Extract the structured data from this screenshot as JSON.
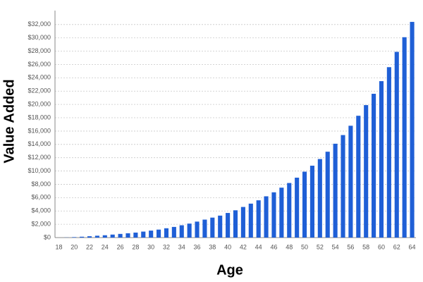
{
  "chart_data": {
    "type": "bar",
    "x_label": "Age",
    "y_label": "Value Added",
    "categories": [
      "18",
      null,
      "20",
      null,
      "22",
      null,
      "24",
      null,
      "26",
      null,
      "28",
      null,
      "30",
      null,
      "32",
      null,
      "34",
      null,
      "36",
      null,
      "38",
      null,
      "40",
      null,
      "42",
      null,
      "44",
      null,
      "46",
      null,
      "48",
      null,
      "50",
      null,
      "52",
      null,
      "54",
      null,
      "56",
      null,
      "58",
      null,
      "60",
      null,
      "62",
      null,
      "64"
    ],
    "values": [
      0,
      20,
      70,
      130,
      200,
      280,
      350,
      450,
      550,
      650,
      750,
      900,
      1050,
      1200,
      1400,
      1600,
      1850,
      2100,
      2400,
      2700,
      3000,
      3300,
      3700,
      4100,
      4600,
      5100,
      5600,
      6200,
      6800,
      7500,
      8200,
      9000,
      9900,
      10800,
      11800,
      12900,
      14100,
      15400,
      16800,
      18300,
      19900,
      21600,
      23500,
      25600,
      27900,
      30100,
      32400
    ],
    "color": "#1f5fd6",
    "ylim": [
      0,
      34100
    ],
    "yticks": [
      {
        "value": 0,
        "label": "$0"
      },
      {
        "value": 2000,
        "label": "$2,000"
      },
      {
        "value": 4000,
        "label": "$4,000"
      },
      {
        "value": 6000,
        "label": "$6,000"
      },
      {
        "value": 8000,
        "label": "$8,000"
      },
      {
        "value": 10000,
        "label": "$10,000"
      },
      {
        "value": 12000,
        "label": "$12,000"
      },
      {
        "value": 14000,
        "label": "$14,000"
      },
      {
        "value": 16000,
        "label": "$16,000"
      },
      {
        "value": 18000,
        "label": "$18,000"
      },
      {
        "value": 20000,
        "label": "$20,000"
      },
      {
        "value": 22000,
        "label": "$22,000"
      },
      {
        "value": 24000,
        "label": "$24,000"
      },
      {
        "value": 26000,
        "label": "$26,000"
      },
      {
        "value": 28000,
        "label": "$28,000"
      },
      {
        "value": 30000,
        "label": "$30,000"
      },
      {
        "value": 32000,
        "label": "$32,000"
      }
    ],
    "grid": true
  }
}
